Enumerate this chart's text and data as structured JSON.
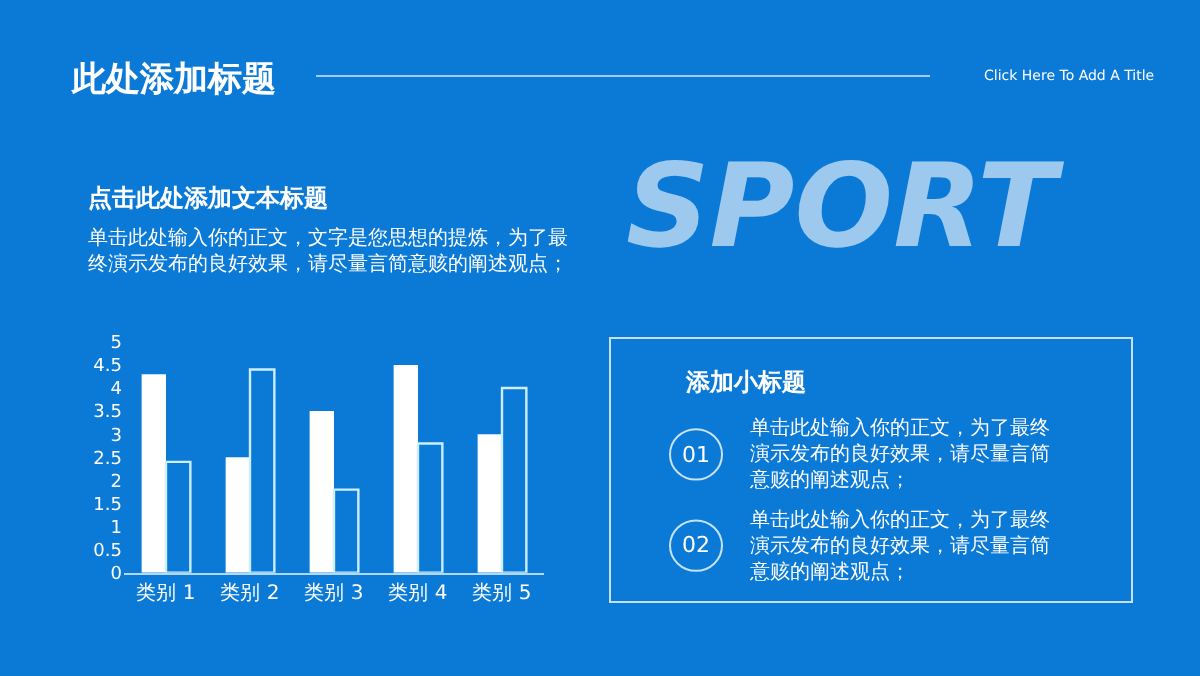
{
  "chart_data": {
    "type": "bar",
    "title": "此处添加标题",
    "subtitle": "点击此处添加文本标题",
    "categories": [
      "类别 1",
      "类别 2",
      "类别 3",
      "类别 4",
      "类别 5"
    ],
    "series": [
      {
        "color": "#ffffff",
        "values": [
          4.3,
          2.5,
          3.5,
          4.5,
          3.0
        ]
      },
      {
        "color": "#cdeffd",
        "values": [
          2.4,
          4.4,
          1.8,
          2.8,
          4.0
        ]
      }
    ],
    "ylim": [
      0,
      5
    ],
    "yticks": [
      0,
      0.5,
      1,
      1.5,
      2,
      2.5,
      3,
      3.5,
      4,
      4.5,
      5
    ],
    "grid": false,
    "annotations": [
      "Click Here To Add A Title",
      "单击此处输入你的正文，文字是您思想的提炼，为了最终演示发布的良好效果，请尽量言简意赅的阐述观点；",
      "SPORT",
      "添加小标题",
      "01",
      "单击此处输入你的正文，为了最终演示发布的良好效果，请尽量言简意赅的阐述观点；",
      "02",
      "单击此处输入你的正文，为了最终演示发布的良好效果，请尽量言简意赅的阐述观点；"
    ]
  }
}
